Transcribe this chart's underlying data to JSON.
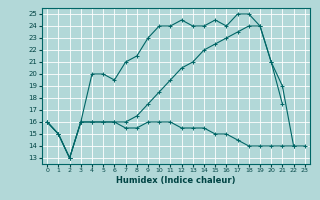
{
  "xlabel": "Humidex (Indice chaleur)",
  "bg_color": "#b2d8d8",
  "grid_color": "#ffffff",
  "line_color": "#006666",
  "xlim": [
    -0.5,
    23.5
  ],
  "ylim": [
    12.5,
    25.5
  ],
  "xticks": [
    0,
    1,
    2,
    3,
    4,
    5,
    6,
    7,
    8,
    9,
    10,
    11,
    12,
    13,
    14,
    15,
    16,
    17,
    18,
    19,
    20,
    21,
    22,
    23
  ],
  "yticks": [
    13,
    14,
    15,
    16,
    17,
    18,
    19,
    20,
    21,
    22,
    23,
    24,
    25
  ],
  "curve1_x": [
    0,
    1,
    2,
    3,
    4,
    5,
    6,
    7,
    8,
    9,
    10,
    11,
    12,
    13,
    14,
    15,
    16,
    17,
    18,
    19,
    20,
    21,
    22
  ],
  "curve1_y": [
    16,
    15,
    13,
    16,
    20,
    20,
    19.5,
    21,
    21.5,
    23,
    24,
    24,
    24.5,
    24,
    24,
    24.5,
    24,
    25,
    25,
    24,
    21,
    19,
    14
  ],
  "curve2_x": [
    0,
    1,
    2,
    3,
    4,
    5,
    6,
    7,
    8,
    9,
    10,
    11,
    12,
    13,
    14,
    15,
    16,
    17,
    18,
    19,
    20,
    21,
    22,
    23
  ],
  "curve2_y": [
    16,
    15,
    13,
    16,
    16,
    16,
    16,
    15.5,
    15.5,
    16,
    16,
    16,
    15.5,
    15.5,
    15.5,
    15,
    15,
    14.5,
    14,
    14,
    14,
    14,
    14,
    14
  ],
  "curve3_x": [
    0,
    1,
    2,
    3,
    4,
    5,
    6,
    7,
    8,
    9,
    10,
    11,
    12,
    13,
    14,
    15,
    16,
    17,
    18,
    19,
    20,
    21
  ],
  "curve3_y": [
    16,
    15,
    13,
    16,
    16,
    16,
    16,
    16,
    16.5,
    17.5,
    18.5,
    19.5,
    20.5,
    21,
    22,
    22.5,
    23,
    23.5,
    24,
    24,
    21,
    17.5
  ]
}
